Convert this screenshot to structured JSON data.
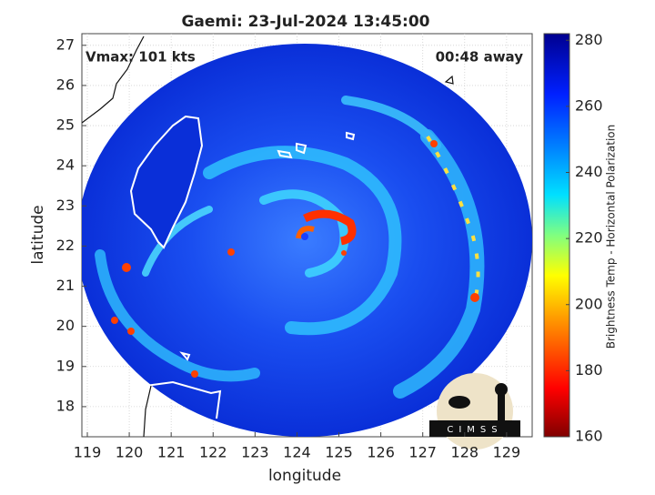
{
  "map": {
    "title": "Gaemi: 23-Jul-2024 13:45:00",
    "annotations": {
      "left": "Vmax: 101 kts",
      "right": "00:48 away"
    },
    "xlabel": "longitude",
    "ylabel": "latitude",
    "xlim": [
      118.87,
      129.61
    ],
    "ylim": [
      17.25,
      27.29
    ],
    "xticks": [
      119,
      120,
      121,
      122,
      123,
      124,
      125,
      126,
      127,
      128,
      129
    ],
    "yticks": [
      18,
      19,
      20,
      21,
      22,
      23,
      24,
      25,
      26,
      27
    ],
    "grid": true,
    "colorbar": {
      "label": "Brightness Temp - Horizontal Polarization",
      "lim": [
        160,
        282
      ],
      "ticks": [
        160,
        180,
        200,
        220,
        240,
        260,
        280
      ]
    },
    "logo": "CIMSS"
  }
}
